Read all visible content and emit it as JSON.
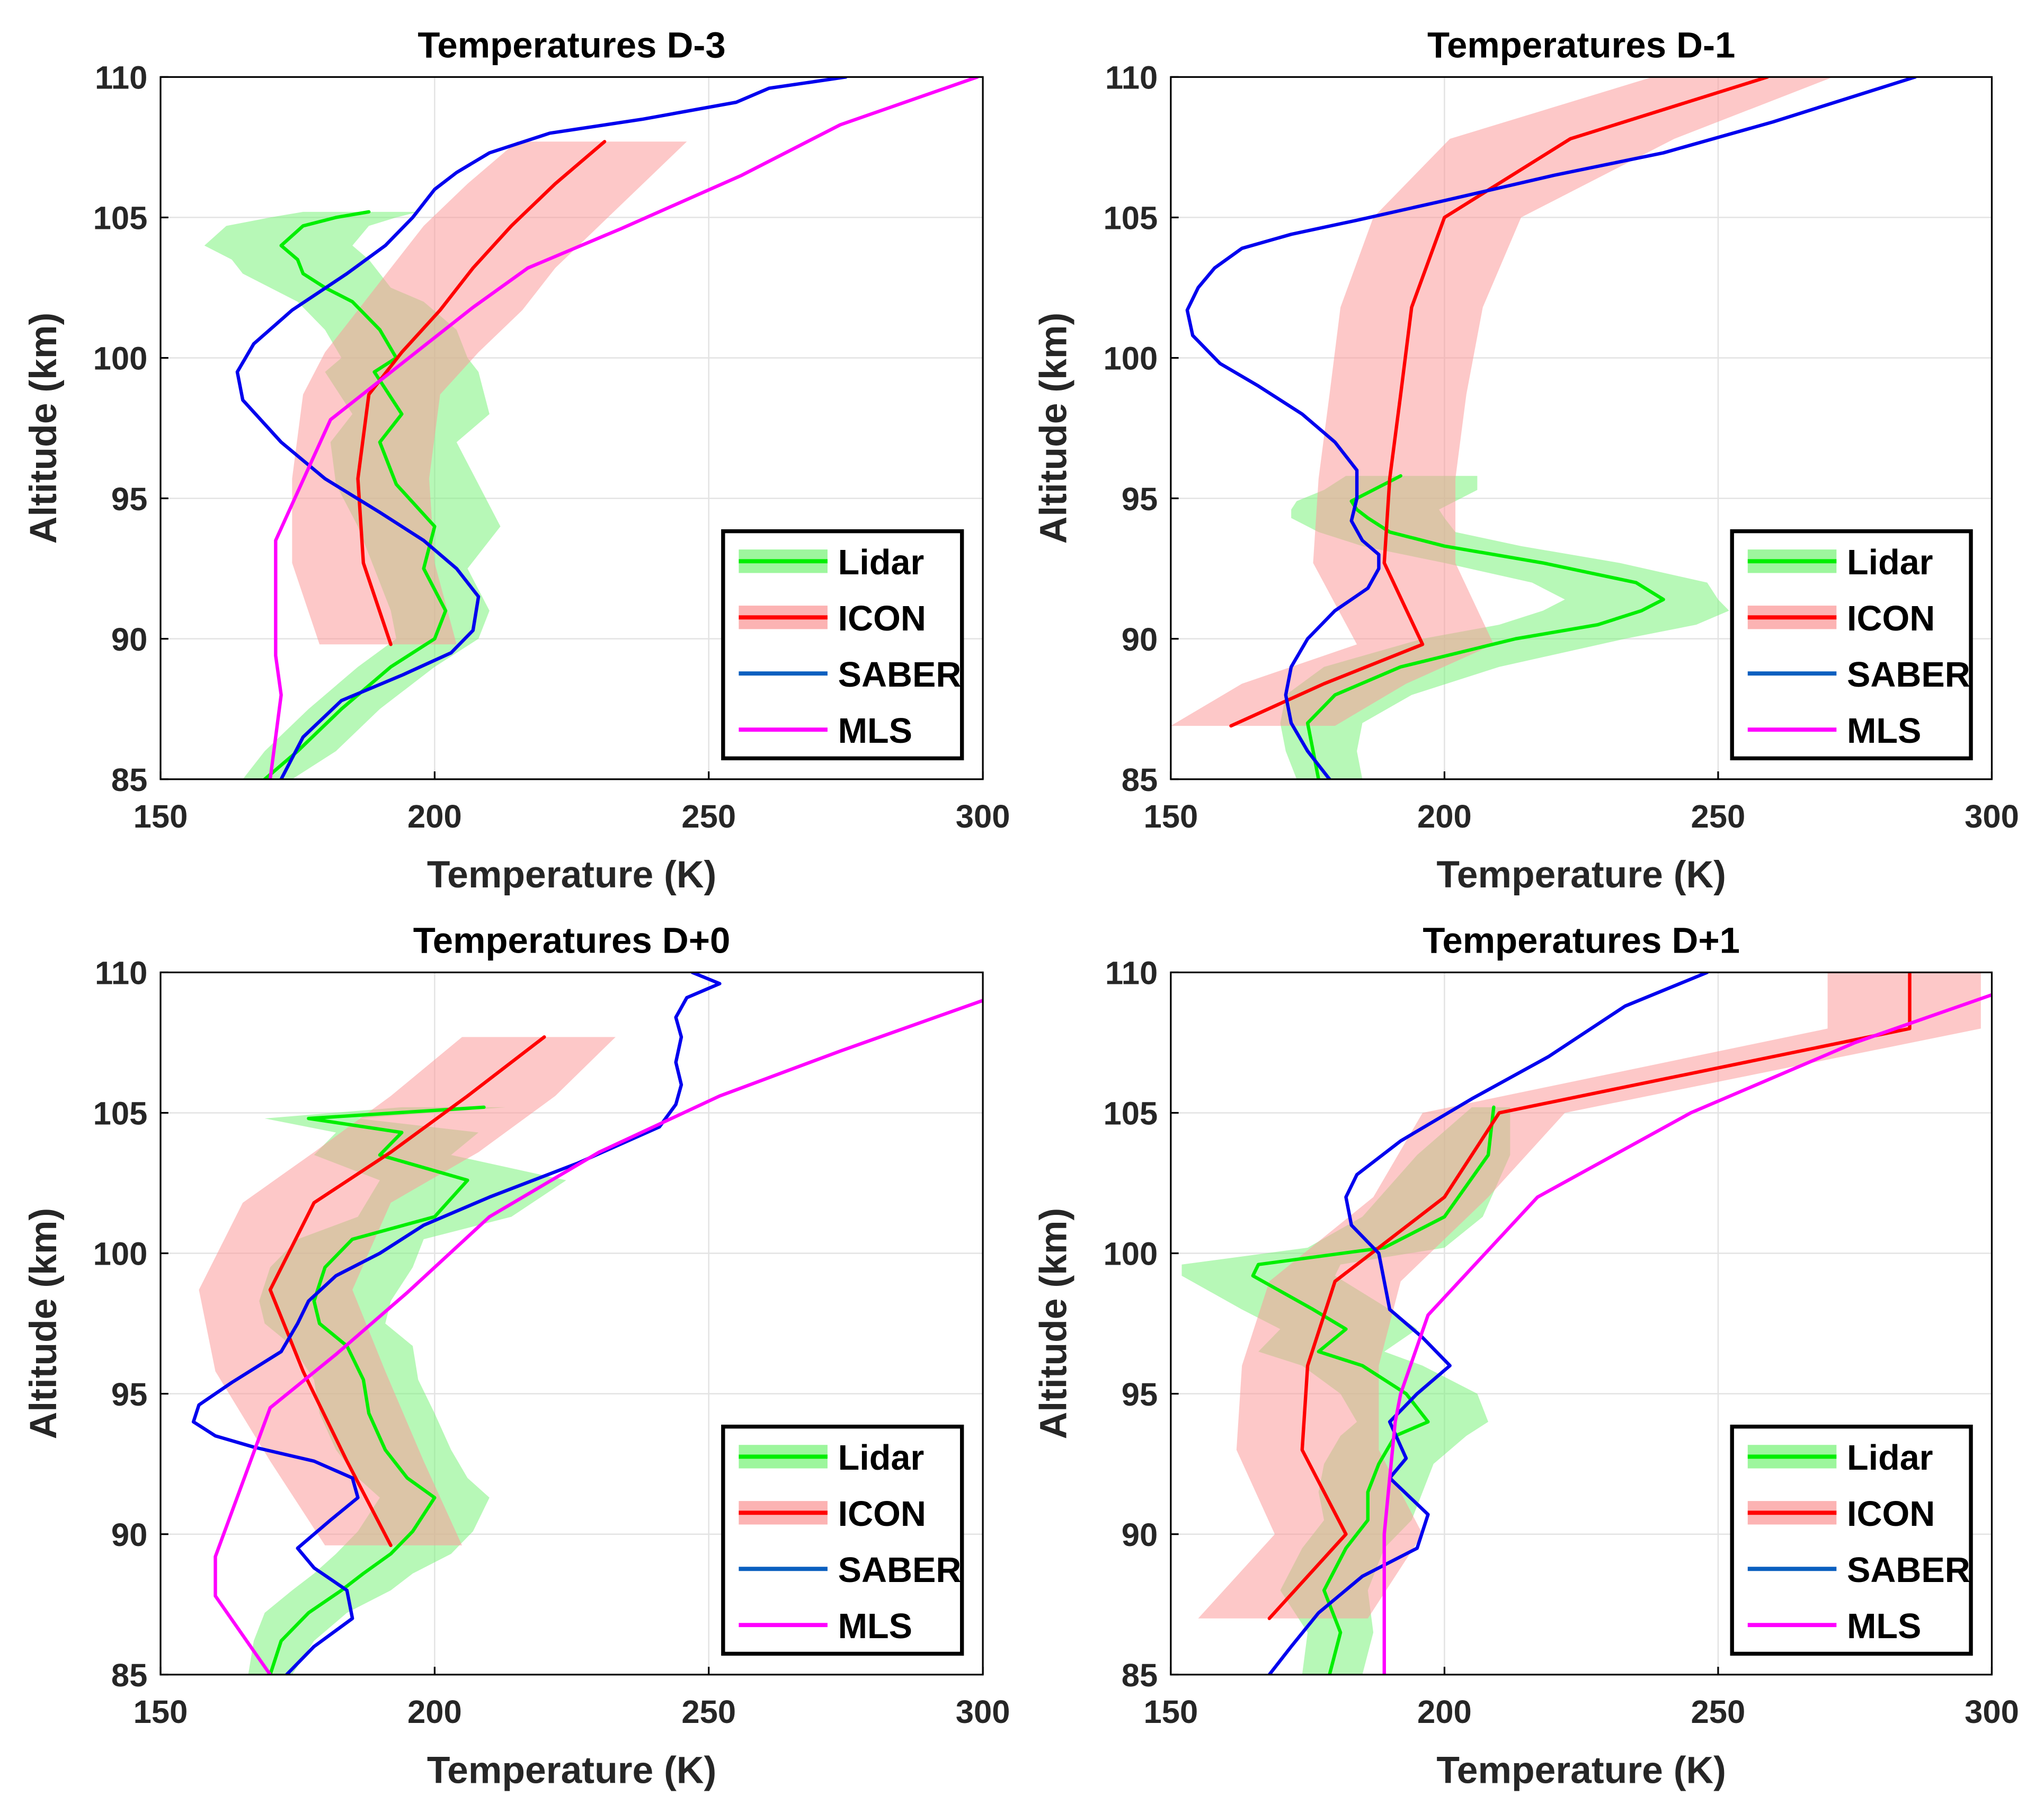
{
  "chart_data": [
    {
      "type": "line",
      "title": "Temperatures D-3",
      "xlabel": "Temperature (K)",
      "ylabel": "Altitude (km)",
      "xlim": [
        150,
        300
      ],
      "ylim": [
        85,
        110
      ],
      "xticks": [
        150,
        200,
        250,
        300
      ],
      "yticks": [
        85,
        90,
        95,
        100,
        105,
        110
      ],
      "grid": true,
      "legend": "bottom-right",
      "series": [
        {
          "name": "Lidar",
          "color": "#00ee00",
          "band_color": "#7cf37c",
          "x": [
            169,
            175,
            183,
            192,
            200,
            202,
            198,
            200,
            193,
            190,
            194,
            189,
            193,
            190,
            185,
            180,
            176,
            175,
            172,
            176,
            182,
            188
          ],
          "y": [
            85,
            86,
            87.5,
            89,
            90,
            91,
            92.5,
            94,
            95.5,
            97,
            98,
            99.5,
            100,
            101,
            102,
            102.5,
            103,
            103.5,
            104,
            104.7,
            105,
            105.2
          ],
          "lo": [
            165,
            169,
            177,
            186,
            193,
            192,
            189,
            186,
            182,
            181,
            185,
            180,
            183,
            180,
            175,
            170,
            165,
            163,
            158,
            162,
            170,
            176
          ],
          "hi": [
            174,
            182,
            190,
            200,
            208,
            210,
            206,
            212,
            208,
            204,
            210,
            208,
            206,
            204,
            198,
            192,
            190,
            188,
            185,
            188,
            193,
            197
          ]
        },
        {
          "name": "ICON",
          "color": "#ff0000",
          "band_color": "#fb9a9a",
          "x": [
            192,
            187,
            186,
            188,
            194,
            201,
            207,
            214,
            222,
            231
          ],
          "y": [
            89.8,
            92.7,
            95.7,
            98.7,
            100.2,
            101.7,
            103.2,
            104.7,
            106.2,
            107.7
          ],
          "lo": [
            179,
            174,
            174,
            176,
            180,
            186,
            192,
            198,
            206,
            215
          ],
          "hi": [
            204,
            200,
            199,
            201,
            208,
            216,
            222,
            230,
            238,
            246
          ]
        },
        {
          "name": "SABER",
          "color": "#0000ee",
          "x": [
            172,
            176,
            183,
            194,
            203,
            207,
            208,
            204,
            198,
            190,
            180,
            172,
            165,
            164,
            167,
            174,
            184,
            191,
            196,
            200,
            204,
            210,
            221,
            238,
            255,
            261,
            275
          ],
          "y": [
            85,
            86.5,
            87.8,
            88.7,
            89.5,
            90.3,
            91.5,
            92.5,
            93.5,
            94.5,
            95.7,
            97,
            98.5,
            99.5,
            100.5,
            101.7,
            103,
            104,
            105,
            106,
            106.6,
            107.3,
            108,
            108.5,
            109.1,
            109.6,
            110
          ]
        },
        {
          "name": "MLS",
          "color": "#ff00ff",
          "x": [
            170,
            172,
            171,
            171,
            181,
            194,
            207,
            217,
            234,
            256,
            274,
            299
          ],
          "y": [
            85,
            88,
            89.4,
            93.5,
            97.8,
            99.8,
            101.8,
            103.2,
            104.6,
            106.5,
            108.3,
            110
          ]
        }
      ]
    },
    {
      "type": "line",
      "title": "Temperatures D-1",
      "xlabel": "Temperature (K)",
      "ylabel": "Altitude (km)",
      "xlim": [
        150,
        300
      ],
      "ylim": [
        85,
        110
      ],
      "xticks": [
        150,
        200,
        250,
        300
      ],
      "yticks": [
        85,
        90,
        95,
        100,
        105,
        110
      ],
      "grid": true,
      "legend": "bottom-right",
      "series": [
        {
          "name": "Lidar",
          "color": "#00ee00",
          "band_color": "#7cf37c",
          "x": [
            177,
            176,
            175,
            180,
            192,
            213,
            228,
            236,
            240,
            235,
            218,
            200,
            190,
            186,
            184,
            183,
            187,
            192
          ],
          "y": [
            85,
            86,
            87,
            88,
            89,
            90,
            90.5,
            91,
            91.4,
            92,
            92.7,
            93.3,
            93.8,
            94.3,
            94.6,
            94.9,
            95.3,
            95.8
          ],
          "lo": [
            173,
            171,
            170,
            171,
            178,
            196,
            210,
            218,
            222,
            216,
            200,
            185,
            177,
            172,
            172,
            173,
            178,
            182
          ],
          "hi": [
            185,
            184,
            185,
            194,
            210,
            233,
            246,
            252,
            250,
            248,
            232,
            214,
            202,
            200,
            199,
            202,
            206,
            206
          ]
        },
        {
          "name": "ICON",
          "color": "#ff0000",
          "band_color": "#fb9a9a",
          "x": [
            161,
            178,
            196,
            189,
            190,
            192,
            194,
            200,
            223,
            259
          ],
          "y": [
            86.9,
            88.4,
            89.8,
            92.7,
            95.7,
            98.7,
            101.8,
            105,
            107.8,
            110
          ],
          "lo": [
            150,
            163,
            184,
            176,
            177,
            179,
            181,
            187,
            201,
            238
          ],
          "hi": [
            180,
            193,
            209,
            202,
            202,
            204,
            207,
            214,
            242,
            271
          ]
        },
        {
          "name": "SABER",
          "color": "#0000ee",
          "x": [
            179,
            175,
            172,
            171,
            172,
            175,
            180,
            186,
            188,
            188,
            185,
            183,
            184,
            184,
            180,
            174,
            166,
            159,
            154,
            153,
            155,
            158,
            163,
            172,
            184,
            200,
            220,
            240,
            260,
            286
          ],
          "y": [
            85,
            86,
            87,
            88,
            89,
            90,
            91,
            91.8,
            92.5,
            93,
            93.5,
            94.2,
            95,
            96,
            97,
            98,
            99,
            99.8,
            100.8,
            101.7,
            102.5,
            103.2,
            103.9,
            104.4,
            104.9,
            105.6,
            106.5,
            107.3,
            108.4,
            110
          ]
        },
        {
          "name": "MLS",
          "color": "#ff00ff",
          "x": [],
          "y": []
        }
      ]
    },
    {
      "type": "line",
      "title": "Temperatures D+0",
      "xlabel": "Temperature (K)",
      "ylabel": "Altitude (km)",
      "xlim": [
        150,
        300
      ],
      "ylim": [
        85,
        110
      ],
      "xticks": [
        150,
        200,
        250,
        300
      ],
      "yticks": [
        85,
        90,
        95,
        100,
        105,
        110
      ],
      "grid": true,
      "legend": "bottom-right",
      "series": [
        {
          "name": "Lidar",
          "color": "#00ee00",
          "band_color": "#7cf37c",
          "x": [
            170,
            172,
            177,
            183,
            187,
            192,
            196,
            200,
            195,
            191,
            188,
            187,
            184,
            179,
            178,
            180,
            185,
            200,
            206,
            190,
            194,
            177,
            209
          ],
          "y": [
            85,
            86.2,
            87.2,
            88,
            88.6,
            89.3,
            90.1,
            91.3,
            92,
            93,
            94.3,
            95.5,
            96.7,
            97.5,
            98.3,
            99.5,
            100.5,
            101.3,
            102.6,
            103.5,
            104.3,
            104.8,
            105.2
          ],
          "lo": [
            166,
            167,
            169,
            174,
            178,
            182,
            186,
            190,
            186,
            182,
            179,
            178,
            174,
            169,
            168,
            170,
            175,
            186,
            190,
            178,
            182,
            169,
            194
          ],
          "hi": [
            174,
            178,
            184,
            192,
            196,
            203,
            207,
            210,
            206,
            203,
            200,
            197,
            196,
            191,
            192,
            196,
            198,
            214,
            224,
            203,
            208,
            186,
            213
          ]
        },
        {
          "name": "ICON",
          "color": "#ff0000",
          "band_color": "#fb9a9a",
          "x": [
            192,
            184,
            176,
            170,
            178,
            192,
            206,
            220
          ],
          "y": [
            89.6,
            92.6,
            95.8,
            98.7,
            101.8,
            103.6,
            105.6,
            107.7
          ],
          "lo": [
            180,
            170,
            160,
            157,
            165,
            178,
            192,
            205
          ],
          "hi": [
            205,
            198,
            191,
            185,
            192,
            208,
            222,
            233
          ]
        },
        {
          "name": "SABER",
          "color": "#0000ee",
          "x": [
            173,
            178,
            185,
            184,
            178,
            175,
            181,
            186,
            185,
            178,
            167,
            160,
            156,
            157,
            163,
            172,
            175,
            177,
            182,
            190,
            198,
            210,
            226,
            241,
            244,
            245,
            244,
            245,
            244,
            246,
            252,
            247
          ],
          "y": [
            85,
            86,
            87,
            88,
            88.8,
            89.5,
            90.5,
            91.3,
            92,
            92.6,
            93.1,
            93.5,
            94,
            94.6,
            95.4,
            96.5,
            97.5,
            98.3,
            99.2,
            100,
            101,
            102,
            103.2,
            104.5,
            105.3,
            106,
            106.8,
            107.7,
            108.4,
            109.1,
            109.6,
            110
          ]
        },
        {
          "name": "MLS",
          "color": "#ff00ff",
          "x": [
            170,
            160,
            160,
            170,
            182,
            195,
            210,
            230,
            252,
            274,
            300
          ],
          "y": [
            85,
            87.8,
            89.2,
            94.5,
            96.4,
            98.6,
            101.3,
            103.6,
            105.6,
            107.2,
            109
          ]
        }
      ]
    },
    {
      "type": "line",
      "title": "Temperatures D+1",
      "xlabel": "Temperature (K)",
      "ylabel": "Altitude (km)",
      "xlim": [
        150,
        300
      ],
      "ylim": [
        85,
        110
      ],
      "xticks": [
        150,
        200,
        250,
        300
      ],
      "yticks": [
        85,
        90,
        95,
        100,
        105,
        110
      ],
      "grid": true,
      "legend": "bottom-right",
      "series": [
        {
          "name": "Lidar",
          "color": "#00ee00",
          "band_color": "#7cf37c",
          "x": [
            179,
            181,
            178,
            182,
            186,
            186,
            188,
            191,
            197,
            193,
            185,
            177,
            182,
            176,
            165,
            166,
            189,
            200,
            208,
            209
          ],
          "y": [
            85,
            86.5,
            88,
            89.5,
            90.5,
            91.5,
            92.5,
            93.5,
            94,
            95,
            96,
            96.5,
            97.3,
            98,
            99.2,
            99.6,
            100.2,
            101.3,
            103.5,
            105.2
          ],
          "lo": [
            174,
            175,
            170,
            174,
            178,
            177,
            178,
            181,
            184,
            181,
            174,
            166,
            170,
            163,
            152,
            152,
            175,
            185,
            195,
            205
          ],
          "hi": [
            185,
            187,
            186,
            189,
            194,
            196,
            198,
            204,
            208,
            206,
            196,
            189,
            195,
            190,
            180,
            181,
            200,
            207,
            212,
            212
          ]
        },
        {
          "name": "ICON",
          "color": "#ff0000",
          "band_color": "#fb9a9a",
          "x": [
            168,
            182,
            174,
            175,
            180,
            200,
            210,
            285,
            285
          ],
          "y": [
            87,
            90,
            93,
            96,
            99,
            102,
            105,
            108,
            110
          ],
          "lo": [
            155,
            169,
            162,
            163,
            168,
            187,
            196,
            270,
            270
          ],
          "hi": [
            186,
            196,
            188,
            188,
            192,
            208,
            222,
            298,
            298
          ]
        },
        {
          "name": "SABER",
          "color": "#0000ee",
          "x": [
            168,
            172,
            177,
            185,
            195,
            197,
            190,
            193,
            190,
            195,
            201,
            196,
            190,
            189,
            188,
            183,
            182,
            184,
            192,
            205,
            219,
            233,
            248
          ],
          "y": [
            85,
            86,
            87.2,
            88.5,
            89.5,
            90.7,
            92,
            92.7,
            94,
            95,
            96,
            97,
            98,
            99,
            100,
            101,
            102,
            102.8,
            104,
            105.5,
            107,
            108.8,
            110
          ]
        },
        {
          "name": "MLS",
          "color": "#ff00ff",
          "x": [
            189,
            189,
            189,
            190,
            191,
            192,
            197,
            217,
            245,
            275,
            300
          ],
          "y": [
            85,
            87,
            90,
            92,
            94,
            95,
            97.8,
            102,
            105,
            107.5,
            109.2
          ]
        }
      ]
    }
  ]
}
